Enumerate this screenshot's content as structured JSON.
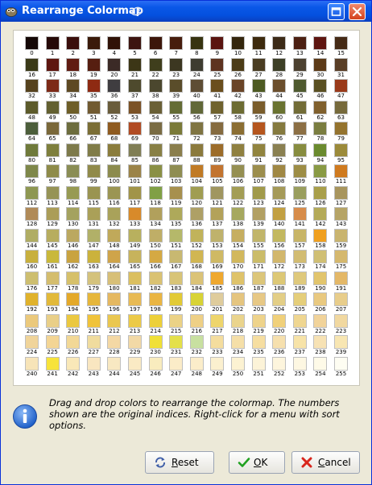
{
  "window": {
    "title": "Rearrange Colormap"
  },
  "colormap": {
    "labels": [
      "0",
      "1",
      "2",
      "3",
      "4",
      "5",
      "6",
      "7",
      "8",
      "9",
      "10",
      "11",
      "12",
      "13",
      "14",
      "15",
      "16",
      "17",
      "18",
      "19",
      "20",
      "21",
      "22",
      "23",
      "24",
      "25",
      "26",
      "27",
      "28",
      "29",
      "30",
      "31",
      "32",
      "33",
      "34",
      "35",
      "36",
      "37",
      "38",
      "39",
      "40",
      "41",
      "42",
      "43",
      "44",
      "45",
      "46",
      "47",
      "48",
      "49",
      "50",
      "51",
      "52",
      "53",
      "54",
      "55",
      "56",
      "57",
      "58",
      "59",
      "60",
      "61",
      "62",
      "63",
      "64",
      "65",
      "66",
      "67",
      "68",
      "69",
      "70",
      "71",
      "72",
      "73",
      "74",
      "75",
      "76",
      "77",
      "78",
      "79",
      "80",
      "81",
      "82",
      "83",
      "84",
      "85",
      "86",
      "87",
      "88",
      "89",
      "90",
      "91",
      "92",
      "93",
      "94",
      "95",
      "96",
      "97",
      "98",
      "99",
      "100",
      "101",
      "102",
      "103",
      "104",
      "105",
      "106",
      "107",
      "108",
      "109",
      "110",
      "111",
      "112",
      "113",
      "114",
      "115",
      "116",
      "117",
      "118",
      "119",
      "120",
      "121",
      "122",
      "123",
      "124",
      "125",
      "126",
      "127",
      "128",
      "129",
      "130",
      "131",
      "132",
      "133",
      "134",
      "135",
      "136",
      "137",
      "138",
      "139",
      "140",
      "141",
      "142",
      "143",
      "144",
      "145",
      "146",
      "147",
      "148",
      "149",
      "150",
      "151",
      "152",
      "153",
      "154",
      "155",
      "156",
      "157",
      "158",
      "159",
      "160",
      "161",
      "162",
      "163",
      "164",
      "165",
      "166",
      "167",
      "168",
      "169",
      "170",
      "171",
      "172",
      "173",
      "174",
      "175",
      "176",
      "177",
      "178",
      "179",
      "180",
      "181",
      "182",
      "183",
      "184",
      "185",
      "186",
      "187",
      "188",
      "189",
      "190",
      "191",
      "192",
      "193",
      "194",
      "195",
      "196",
      "197",
      "198",
      "199",
      "200",
      "201",
      "202",
      "203",
      "204",
      "205",
      "206",
      "207",
      "208",
      "209",
      "210",
      "211",
      "212",
      "213",
      "214",
      "215",
      "216",
      "217",
      "218",
      "219",
      "220",
      "221",
      "222",
      "223",
      "224",
      "225",
      "226",
      "227",
      "228",
      "229",
      "230",
      "231",
      "232",
      "233",
      "234",
      "235",
      "236",
      "237",
      "238",
      "239",
      "240",
      "241",
      "242",
      "243",
      "244",
      "245",
      "246",
      "247",
      "248",
      "249",
      "250",
      "251",
      "252",
      "253",
      "254",
      "255"
    ],
    "colors": [
      "#140806",
      "#260a08",
      "#3a0e0b",
      "#3a1a0a",
      "#301207",
      "#3d1510",
      "#3c160a",
      "#471d0d",
      "#373310",
      "#5a1510",
      "#34260d",
      "#3d2a0d",
      "#3c2a17",
      "#4c2012",
      "#5e1510",
      "#452a16",
      "#3b3a18",
      "#5e1710",
      "#601b12",
      "#561e10",
      "#3b2a26",
      "#3c3616",
      "#3f3e1c",
      "#3c3721",
      "#3e3c30",
      "#5e3320",
      "#4c3c17",
      "#4a3d22",
      "#3d3f26",
      "#4c4130",
      "#5c3a17",
      "#593e26",
      "#56421e",
      "#7d2a17",
      "#5e4923",
      "#8e2a12",
      "#3f3d40",
      "#4e4a2d",
      "#4b472e",
      "#5a4d2a",
      "#5e4d34",
      "#6a4e1d",
      "#6a4427",
      "#4d5a22",
      "#6b4e2c",
      "#4f5a2f",
      "#5a5022",
      "#9a3a1a",
      "#5c5a2b",
      "#636031",
      "#6e5e28",
      "#715a31",
      "#695c3b",
      "#7b5226",
      "#6a6036",
      "#646c35",
      "#616838",
      "#6f622e",
      "#6d6c33",
      "#7a5d2c",
      "#6a7331",
      "#726c37",
      "#80602d",
      "#776a3c",
      "#4c5e3b",
      "#7a683a",
      "#6d6d3e",
      "#7b6e36",
      "#8f5b20",
      "#b14b23",
      "#7a6c43",
      "#7a7a38",
      "#7f7442",
      "#856b40",
      "#8b6e33",
      "#b5561e",
      "#857a3f",
      "#8c6f44",
      "#7a7d40",
      "#94732e",
      "#6f7a3b",
      "#7e7f3d",
      "#7d7a4b",
      "#807c48",
      "#8a7c3c",
      "#807e55",
      "#888045",
      "#8a7e4c",
      "#8b7a3d",
      "#9c6c2a",
      "#8f8040",
      "#91843f",
      "#8a8051",
      "#878c3f",
      "#6a8a2e",
      "#9b8a3a",
      "#7e874a",
      "#8e8b49",
      "#8a8d55",
      "#908a4a",
      "#8c8b4e",
      "#9b8348",
      "#8a9045",
      "#8f8d52",
      "#c07a25",
      "#c2742f",
      "#958f52",
      "#9c8e4d",
      "#a08844",
      "#9d8d45",
      "#899a44",
      "#cf7a1f",
      "#8e9752",
      "#969356",
      "#979a53",
      "#9a9451",
      "#9b9553",
      "#a19448",
      "#80a045",
      "#a7904e",
      "#a09d52",
      "#a09660",
      "#a39d55",
      "#a19a4a",
      "#a59a58",
      "#9a9e5e",
      "#a99f4a",
      "#a8955d",
      "#b08a58",
      "#ab9d58",
      "#a4a25f",
      "#aaa058",
      "#a9a25a",
      "#d88a2a",
      "#b1a05c",
      "#aea95a",
      "#aea066",
      "#b3a25a",
      "#a6a85f",
      "#b2a063",
      "#c2a042",
      "#d78c4a",
      "#b4aa58",
      "#b6a466",
      "#b0ad64",
      "#b7ad5f",
      "#bba860",
      "#b1b068",
      "#c0a95a",
      "#b8b05e",
      "#bfae67",
      "#b5b86a",
      "#c1b35a",
      "#bfb26c",
      "#c6ae60",
      "#c1b56a",
      "#c3b85f",
      "#c8b567",
      "#f0a020",
      "#c9b46f",
      "#c8b03e",
      "#c9b83b",
      "#c9a340",
      "#cbb23c",
      "#cfa44a",
      "#c7b35c",
      "#d5a943",
      "#c8b871",
      "#d1b652",
      "#cfb964",
      "#d2b85d",
      "#cbbc69",
      "#d2b76c",
      "#d2bc72",
      "#d0bf74",
      "#d5b86e",
      "#cdbe70",
      "#d4bd6e",
      "#d6c06a",
      "#d4c27c",
      "#d7bf78",
      "#dbbf60",
      "#dac272",
      "#d8c477",
      "#dbc377",
      "#efa82e",
      "#dfc36a",
      "#dcc67a",
      "#ddc876",
      "#dfc97c",
      "#e2c56d",
      "#e4b868",
      "#e0b22c",
      "#e2b93a",
      "#e4a92a",
      "#e6b63a",
      "#e5b860",
      "#e8ba54",
      "#eab542",
      "#e2ca35",
      "#d8d335",
      "#dfcc9c",
      "#e5c57f",
      "#e7c885",
      "#e3ce86",
      "#e5ce7a",
      "#e9c980",
      "#e8cd8b",
      "#ebc97c",
      "#e9cf88",
      "#ebc840",
      "#f0c33a",
      "#eac750",
      "#ecca48",
      "#edd039",
      "#ebd286",
      "#eed086",
      "#eed56c",
      "#ead48d",
      "#eed38b",
      "#f0d07a",
      "#efd691",
      "#f1d39a",
      "#f1d8a0",
      "#f0d49a",
      "#f3d594",
      "#f2d896",
      "#f0dc9e",
      "#f4d8a4",
      "#f2d9a6",
      "#f0e037",
      "#e4e04a",
      "#c8e0a0",
      "#f4dd9e",
      "#f5dfa8",
      "#f6dea1",
      "#f6e0ae",
      "#f7e3a8",
      "#f7e2b4",
      "#f8e6b2",
      "#f7e4b8",
      "#f7e33a",
      "#f9e8b8",
      "#f9e6c0",
      "#f8e8c2",
      "#faeac4",
      "#f9ecbe",
      "#fbecc8",
      "#fbedca",
      "#fbf0cf",
      "#fcf2d2",
      "#fcf3d8",
      "#fdf5dd",
      "#fdf7e2",
      "#fefae8",
      "#fefdf2"
    ]
  },
  "info": {
    "message": "Drag and drop colors to rearrange the colormap.  The numbers shown are the original indices.  Right-click for a menu with sort options.",
    "icon": "info-icon"
  },
  "buttons": {
    "reset": {
      "pre": "",
      "mn": "R",
      "post": "eset",
      "icon": "reset-icon"
    },
    "ok": {
      "pre": "",
      "mn": "O",
      "post": "K",
      "icon": "check-icon"
    },
    "cancel": {
      "pre": "",
      "mn": "C",
      "post": "ancel",
      "icon": "cancel-x-icon"
    }
  },
  "colors": {
    "titlebar": "#0a58e8",
    "window_bg": "#ece9d8",
    "ok_check": "#21a121",
    "cancel_x": "#d9261c",
    "info_blue": "#1e5fc8"
  }
}
